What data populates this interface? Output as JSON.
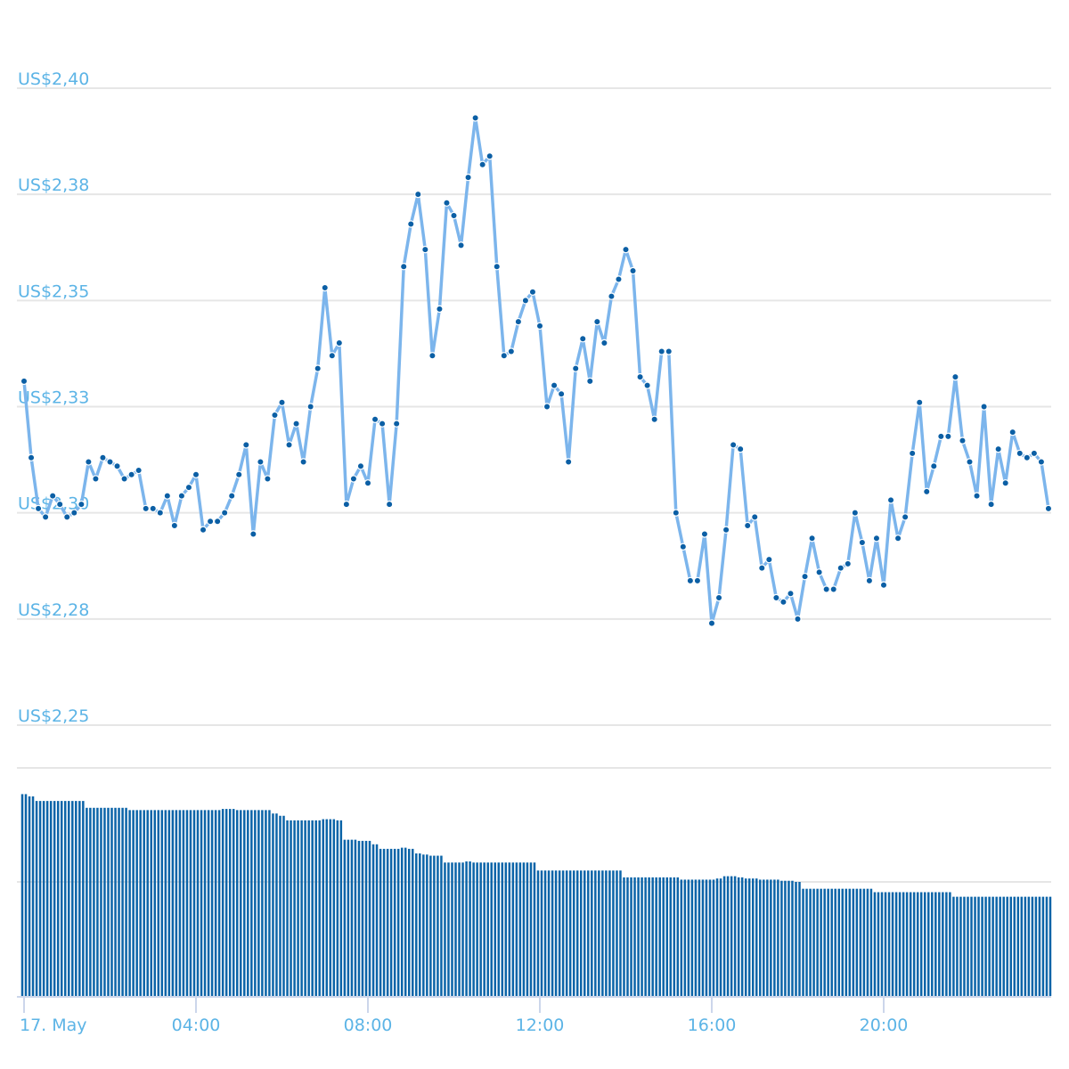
{
  "chart_data": [
    {
      "type": "line",
      "panel": "price",
      "ylim": [
        2.25,
        2.4
      ],
      "grid": true,
      "line_color": "#7cb5ec",
      "marker_color": "#0b5fa5",
      "y_ticks": [
        {
          "value": 2.4,
          "label": "US$2,40"
        },
        {
          "value": 2.375,
          "label": "US$2,38"
        },
        {
          "value": 2.35,
          "label": "US$2,35"
        },
        {
          "value": 2.325,
          "label": "US$2,33"
        },
        {
          "value": 2.3,
          "label": "US$2,30"
        },
        {
          "value": 2.275,
          "label": "US$2,28"
        },
        {
          "value": 2.25,
          "label": "US$2,25"
        }
      ],
      "x_ticks": [
        {
          "value": "00:00",
          "label": "17. May"
        },
        {
          "value": "04:00",
          "label": "04:00"
        },
        {
          "value": "08:00",
          "label": "08:00"
        },
        {
          "value": "12:00",
          "label": "12:00"
        },
        {
          "value": "16:00",
          "label": "16:00"
        },
        {
          "value": "20:00",
          "label": "20:00"
        }
      ],
      "x": [
        "00:00",
        "00:10",
        "00:20",
        "00:30",
        "00:40",
        "00:50",
        "01:00",
        "01:10",
        "01:20",
        "01:30",
        "01:40",
        "01:50",
        "02:00",
        "02:10",
        "02:20",
        "02:30",
        "02:40",
        "02:50",
        "03:00",
        "03:10",
        "03:20",
        "03:30",
        "03:40",
        "03:50",
        "04:00",
        "04:10",
        "04:20",
        "04:30",
        "04:40",
        "04:50",
        "05:00",
        "05:10",
        "05:20",
        "05:30",
        "05:40",
        "05:50",
        "06:00",
        "06:10",
        "06:20",
        "06:30",
        "06:40",
        "06:50",
        "07:00",
        "07:10",
        "07:20",
        "07:30",
        "07:40",
        "07:50",
        "08:00",
        "08:10",
        "08:20",
        "08:30",
        "08:40",
        "08:50",
        "09:00",
        "09:10",
        "09:20",
        "09:30",
        "09:40",
        "09:50",
        "10:00",
        "10:10",
        "10:20",
        "10:30",
        "10:40",
        "10:50",
        "11:00",
        "11:10",
        "11:20",
        "11:30",
        "11:40",
        "11:50",
        "12:00",
        "12:10",
        "12:20",
        "12:30",
        "12:40",
        "12:50",
        "13:00",
        "13:10",
        "13:20",
        "13:30",
        "13:40",
        "13:50",
        "14:00",
        "14:10",
        "14:20",
        "14:30",
        "14:40",
        "14:50",
        "15:00",
        "15:10",
        "15:20",
        "15:30",
        "15:40",
        "15:50",
        "16:00",
        "16:10",
        "16:20",
        "16:30",
        "16:40",
        "16:50",
        "17:00",
        "17:10",
        "17:20",
        "17:30",
        "17:40",
        "17:50",
        "18:00",
        "18:10",
        "18:20",
        "18:30",
        "18:40",
        "18:50",
        "19:00",
        "19:10",
        "19:20",
        "19:30",
        "19:40",
        "19:50",
        "20:00",
        "20:10",
        "20:20",
        "20:30",
        "20:40",
        "20:50",
        "21:00",
        "21:10",
        "21:20",
        "21:30",
        "21:40",
        "21:50",
        "22:00",
        "22:10",
        "22:20",
        "22:30",
        "22:40",
        "22:50",
        "23:00",
        "23:10",
        "23:20",
        "23:30",
        "23:40",
        "23:50"
      ],
      "values": [
        2.331,
        2.313,
        2.301,
        2.299,
        2.304,
        2.302,
        2.299,
        2.3,
        2.302,
        2.312,
        2.308,
        2.313,
        2.312,
        2.311,
        2.308,
        2.309,
        2.31,
        2.301,
        2.301,
        2.3,
        2.304,
        2.297,
        2.304,
        2.306,
        2.309,
        2.296,
        2.298,
        2.298,
        2.3,
        2.304,
        2.309,
        2.316,
        2.295,
        2.312,
        2.308,
        2.323,
        2.326,
        2.316,
        2.321,
        2.312,
        2.325,
        2.334,
        2.353,
        2.337,
        2.34,
        2.302,
        2.308,
        2.311,
        2.307,
        2.322,
        2.321,
        2.302,
        2.321,
        2.358,
        2.368,
        2.375,
        2.362,
        2.337,
        2.348,
        2.373,
        2.37,
        2.363,
        2.379,
        2.393,
        2.382,
        2.384,
        2.358,
        2.337,
        2.338,
        2.345,
        2.35,
        2.352,
        2.344,
        2.325,
        2.33,
        2.328,
        2.312,
        2.334,
        2.341,
        2.331,
        2.345,
        2.34,
        2.351,
        2.355,
        2.362,
        2.357,
        2.332,
        2.33,
        2.322,
        2.338,
        2.338,
        2.3,
        2.292,
        2.284,
        2.284,
        2.295,
        2.274,
        2.28,
        2.296,
        2.316,
        2.315,
        2.297,
        2.299,
        2.287,
        2.289,
        2.28,
        2.279,
        2.281,
        2.275,
        2.285,
        2.294,
        2.286,
        2.282,
        2.282,
        2.287,
        2.288,
        2.3,
        2.293,
        2.284,
        2.294,
        2.283,
        2.303,
        2.294,
        2.299,
        2.314,
        2.326,
        2.305,
        2.311,
        2.318,
        2.318,
        2.332,
        2.317,
        2.312,
        2.304,
        2.325,
        2.302,
        2.315,
        2.307,
        2.319,
        2.314,
        2.313,
        2.314,
        2.312,
        2.301
      ]
    },
    {
      "type": "bar",
      "panel": "volume",
      "ylim": [
        0,
        2
      ],
      "grid": true,
      "bar_color": "#0b64a8",
      "x": "same as price panel",
      "values": [
        1.77,
        1.75,
        1.71,
        1.71,
        1.71,
        1.71,
        1.71,
        1.71,
        1.71,
        1.65,
        1.65,
        1.65,
        1.65,
        1.65,
        1.65,
        1.63,
        1.63,
        1.63,
        1.63,
        1.63,
        1.63,
        1.63,
        1.63,
        1.63,
        1.63,
        1.63,
        1.63,
        1.63,
        1.64,
        1.64,
        1.63,
        1.63,
        1.63,
        1.63,
        1.63,
        1.6,
        1.58,
        1.54,
        1.54,
        1.54,
        1.54,
        1.54,
        1.55,
        1.55,
        1.54,
        1.37,
        1.37,
        1.36,
        1.36,
        1.33,
        1.29,
        1.29,
        1.29,
        1.3,
        1.29,
        1.25,
        1.24,
        1.23,
        1.23,
        1.17,
        1.17,
        1.17,
        1.18,
        1.17,
        1.17,
        1.17,
        1.17,
        1.17,
        1.17,
        1.17,
        1.17,
        1.17,
        1.1,
        1.1,
        1.1,
        1.1,
        1.1,
        1.1,
        1.1,
        1.1,
        1.1,
        1.1,
        1.1,
        1.1,
        1.04,
        1.04,
        1.04,
        1.04,
        1.04,
        1.04,
        1.04,
        1.04,
        1.02,
        1.02,
        1.02,
        1.02,
        1.02,
        1.03,
        1.05,
        1.05,
        1.04,
        1.03,
        1.03,
        1.02,
        1.02,
        1.02,
        1.01,
        1.01,
        1.0,
        0.94,
        0.94,
        0.94,
        0.94,
        0.94,
        0.94,
        0.94,
        0.94,
        0.94,
        0.94,
        0.91,
        0.91,
        0.91,
        0.91,
        0.91,
        0.91,
        0.91,
        0.91,
        0.91,
        0.91,
        0.91,
        0.87,
        0.87,
        0.87,
        0.87,
        0.87,
        0.87,
        0.87,
        0.87,
        0.87,
        0.87,
        0.87,
        0.87,
        0.87,
        0.87
      ]
    }
  ]
}
